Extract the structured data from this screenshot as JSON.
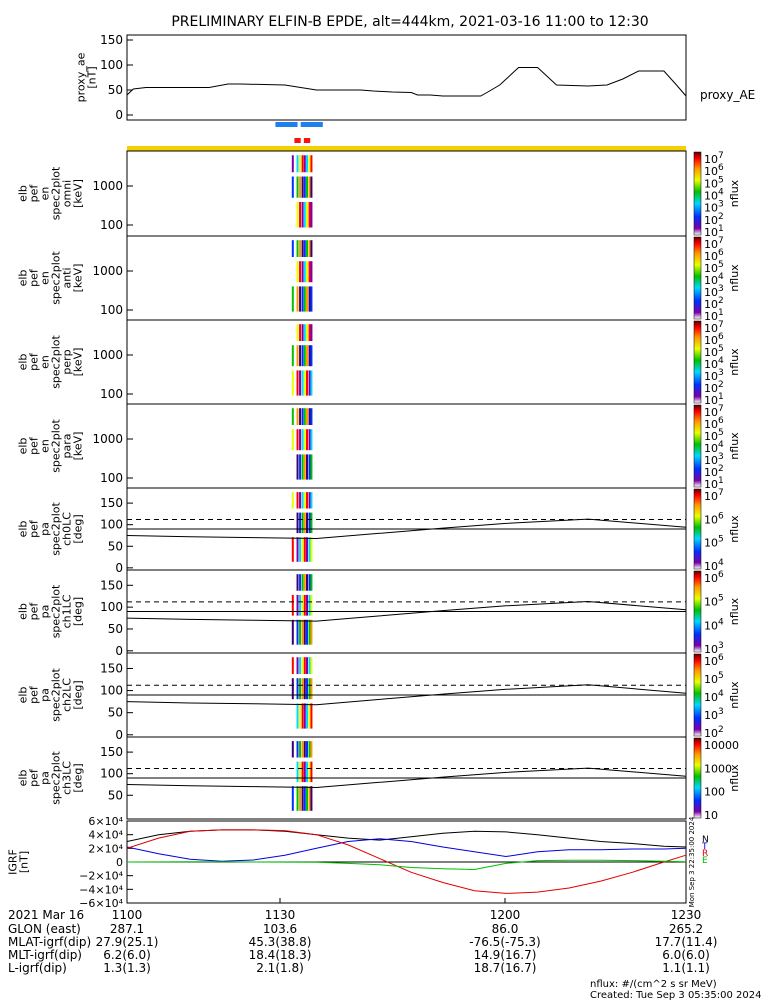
{
  "title": "PRELIMINARY ELFIN-B EPDE, alt=444km, 2021-03-16 11:00 to 12:30",
  "chart_data": [
    {
      "type": "line",
      "name": "proxy_ae",
      "ylabel": [
        "proxy_ae",
        "[nT]"
      ],
      "legend": "proxy_AE",
      "ylim": [
        -10,
        160
      ],
      "yticks": [
        "150",
        "100",
        "50",
        "0"
      ],
      "x_minutes": [
        0,
        2,
        6,
        14,
        26,
        32,
        36,
        50,
        60,
        66,
        74,
        78,
        84,
        90,
        92,
        96,
        100,
        108,
        112,
        114,
        118,
        124,
        130,
        136,
        146,
        152,
        157,
        162,
        166,
        170,
        174,
        177
      ],
      "values": [
        40,
        52,
        55,
        55,
        55,
        62,
        62,
        60,
        50,
        50,
        50,
        48,
        46,
        45,
        40,
        40,
        38,
        38,
        38,
        45,
        60,
        95,
        95,
        60,
        58,
        60,
        72,
        88,
        88,
        88,
        60,
        38
      ]
    },
    {
      "type": "bar",
      "name": "data-availability",
      "x_range_minutes": [
        0,
        177
      ],
      "color": "#f5d000",
      "blue_marks": [
        [
          47,
          54
        ],
        [
          55,
          62
        ]
      ],
      "red_marks": [
        [
          53,
          55
        ],
        [
          56,
          58
        ]
      ]
    },
    {
      "type": "heatmap",
      "panels": [
        {
          "name": "omni",
          "ylabel": [
            "elb",
            "pef",
            "en",
            "spec2plot",
            "omni",
            "[keV]"
          ],
          "yticks": [
            "1000",
            "100"
          ],
          "colorbar_ticks": [
            "10^7",
            "10^6",
            "10^5",
            "10^4",
            "10^3",
            "10^2",
            "10^1"
          ],
          "colorbar_label": "nflux"
        },
        {
          "name": "anti",
          "ylabel": [
            "elb",
            "pef",
            "en",
            "spec2plot",
            "anti",
            "[keV]"
          ],
          "yticks": [
            "1000",
            "100"
          ],
          "colorbar_ticks": [
            "10^7",
            "10^6",
            "10^5",
            "10^4",
            "10^3",
            "10^2",
            "10^1"
          ],
          "colorbar_label": "nflux"
        },
        {
          "name": "perp",
          "ylabel": [
            "elb",
            "pef",
            "en",
            "spec2plot",
            "perp",
            "[keV]"
          ],
          "yticks": [
            "1000",
            "100"
          ],
          "colorbar_ticks": [
            "10^7",
            "10^6",
            "10^5",
            "10^4",
            "10^3",
            "10^2",
            "10^1"
          ],
          "colorbar_label": "nflux"
        },
        {
          "name": "para",
          "ylabel": [
            "elb",
            "pef",
            "en",
            "spec2plot",
            "para",
            "[keV]"
          ],
          "yticks": [
            "1000",
            "100"
          ],
          "colorbar_ticks": [
            "10^7",
            "10^6",
            "10^5",
            "10^4",
            "10^3",
            "10^2",
            "10^1"
          ],
          "colorbar_label": "nflux"
        },
        {
          "name": "ch0LC",
          "ylabel": [
            "elb",
            "pef",
            "pa",
            "spec2plot",
            "ch0LC",
            "[deg]"
          ],
          "yticks": [
            "150",
            "100",
            "50",
            "0"
          ],
          "colorbar_ticks": [
            "10^7",
            "10^6",
            "10^5",
            "10^4"
          ],
          "colorbar_label": "nflux"
        },
        {
          "name": "ch1LC",
          "ylabel": [
            "elb",
            "pef",
            "pa",
            "spec2plot",
            "ch1LC",
            "[deg]"
          ],
          "yticks": [
            "150",
            "100",
            "50",
            "0"
          ],
          "colorbar_ticks": [
            "10^6",
            "10^5",
            "10^4",
            "10^3"
          ],
          "colorbar_label": "nflux"
        },
        {
          "name": "ch2LC",
          "ylabel": [
            "elb",
            "pef",
            "pa",
            "spec2plot",
            "ch2LC",
            "[deg]"
          ],
          "yticks": [
            "150",
            "100",
            "50",
            "0"
          ],
          "colorbar_ticks": [
            "10^6",
            "10^5",
            "10^4",
            "10^3",
            "10^2"
          ],
          "colorbar_label": "nflux"
        },
        {
          "name": "ch3LC",
          "ylabel": [
            "elb",
            "pef",
            "pa",
            "spec2plot",
            "ch3LC",
            "[deg]"
          ],
          "yticks": [
            "150",
            "100",
            "50"
          ],
          "colorbar_ticks": [
            "10000",
            "1000",
            "100",
            "10"
          ],
          "colorbar_label": "nflux"
        }
      ],
      "loss_cone_deg": {
        "x_minutes": [
          0,
          20,
          40,
          60,
          80,
          100,
          120,
          146,
          177
        ],
        "dashed": 112,
        "solid": [
          90,
          90,
          90,
          90,
          90,
          90,
          90,
          90,
          90
        ],
        "curve": [
          75,
          72,
          70,
          68,
          80,
          92,
          103,
          113,
          94
        ]
      },
      "burst_lines_minutes": [
        52.5,
        54.0,
        54.8,
        55.6,
        56.3,
        57.0,
        57.8,
        58.4
      ]
    },
    {
      "type": "line",
      "name": "IGRF",
      "ylabel": [
        "IGRF",
        "[nT]"
      ],
      "ylim": [
        -60000,
        60000
      ],
      "yticks": [
        "6×10⁴",
        "4×10⁴",
        "2×10⁴",
        "0",
        "−2×10⁴",
        "−4×10⁴",
        "−6×10⁴"
      ],
      "x_minutes": [
        0,
        10,
        20,
        30,
        40,
        50,
        60,
        70,
        80,
        90,
        100,
        110,
        120,
        130,
        140,
        150,
        160,
        170,
        177
      ],
      "series": [
        {
          "name": "N",
          "color": "#000000",
          "values": [
            30000,
            40000,
            45000,
            47000,
            47000,
            45000,
            40000,
            35000,
            32000,
            37000,
            42000,
            45000,
            44000,
            40000,
            35000,
            30000,
            27000,
            23000,
            22000
          ]
        },
        {
          "name": "T",
          "color": "#0000e0",
          "values": [
            22000,
            12000,
            4000,
            1000,
            3000,
            10000,
            20000,
            30000,
            34000,
            30000,
            22000,
            15000,
            8000,
            15000,
            18000,
            18000,
            19000,
            19000,
            20000
          ]
        },
        {
          "name": "R",
          "color": "#e00000",
          "values": [
            20000,
            35000,
            45000,
            47000,
            47000,
            46000,
            40000,
            25000,
            5000,
            -15000,
            -30000,
            -42000,
            -46000,
            -44000,
            -38000,
            -28000,
            -15000,
            0,
            10000
          ]
        },
        {
          "name": "E",
          "color": "#00c000",
          "values": [
            0,
            200,
            500,
            300,
            0,
            -200,
            -500,
            -2000,
            -4000,
            -8000,
            -10000,
            -11000,
            -2000,
            2000,
            2500,
            2500,
            2000,
            1000,
            500
          ]
        }
      ],
      "side_text": "Mon Sep  3 22:35:00 2024"
    }
  ],
  "x_axis": {
    "labels_row": "2021 Mar 16",
    "tick_labels": [
      "1100",
      "1130",
      "1200",
      "1230"
    ],
    "rows": [
      {
        "label": "GLON (east)",
        "values": [
          "287.1",
          "103.6",
          "86.0",
          "265.2"
        ]
      },
      {
        "label": "MLAT-igrf(dip)",
        "values": [
          "27.9(25.1)",
          "45.3(38.8)",
          "-76.5(-75.3)",
          "17.7(11.4)"
        ]
      },
      {
        "label": "MLT-igrf(dip)",
        "values": [
          "6.2(6.0)",
          "18.4(18.3)",
          "14.9(16.7)",
          "6.0(6.0)"
        ]
      },
      {
        "label": "L-igrf(dip)",
        "values": [
          "1.3(1.3)",
          "2.1(1.8)",
          "18.7(16.7)",
          "1.1(1.1)"
        ]
      }
    ]
  },
  "footer": {
    "units": "nflux: #/(cm^2 s sr MeV)",
    "created": "Created: Tue Sep  3 05:35:00 2024"
  }
}
